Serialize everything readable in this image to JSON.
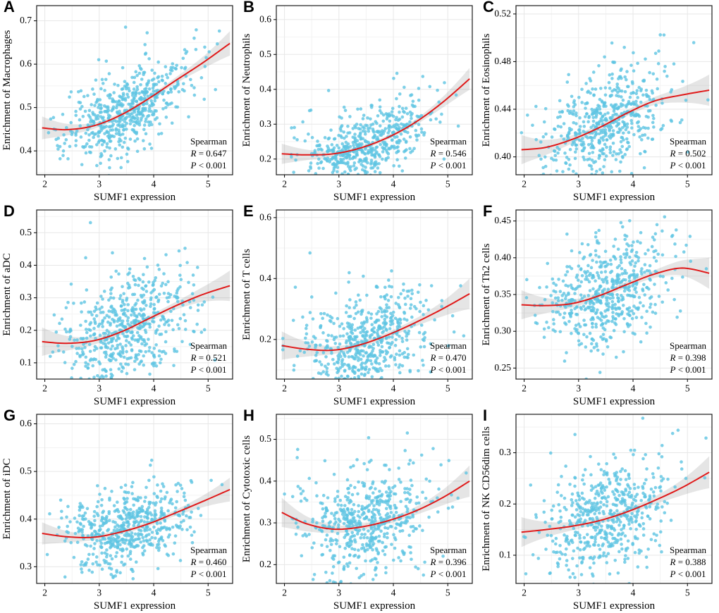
{
  "style": {
    "point_color": "#5ec4e2",
    "line_color": "#e01a1a",
    "band_color": "rgba(125,125,125,0.20)",
    "grid_major": "#e7e7e7",
    "grid_minor": "#f3f3f3",
    "border_color": "#1a1a1a"
  },
  "chart_data": [
    {
      "type": "scatter",
      "panel": "A",
      "ylabel": "Enrichment of Macrophages",
      "xlabel": "SUMF1 expression",
      "stats": {
        "method": "Spearman",
        "r_var": "R",
        "r_val": "= 0.647",
        "p_var": "P",
        "p_val": "< 0.001"
      },
      "x_ticks": [
        2,
        3,
        4,
        5
      ],
      "x_range": [
        1.85,
        5.45
      ],
      "y_ticks": [
        0.4,
        0.5,
        0.6,
        0.7
      ],
      "y_tick_labels": [
        "0.4",
        "0.5",
        "0.6",
        "0.7"
      ],
      "y_range": [
        0.345,
        0.735
      ],
      "n_points": 560,
      "x_mean": 3.5,
      "x_sd": 0.58,
      "spread": 0.045,
      "seed": 11,
      "trend": [
        [
          1.95,
          0.453
        ],
        [
          2.4,
          0.449
        ],
        [
          2.9,
          0.458
        ],
        [
          3.4,
          0.483
        ],
        [
          3.9,
          0.52
        ],
        [
          4.4,
          0.562
        ],
        [
          4.9,
          0.603
        ],
        [
          5.4,
          0.648
        ]
      ]
    },
    {
      "type": "scatter",
      "panel": "B",
      "ylabel": "Enrichment of Neutrophils",
      "xlabel": "SUMF1 expression",
      "stats": {
        "method": "Spearman",
        "r_var": "R",
        "r_val": "= 0.546",
        "p_var": "P",
        "p_val": "< 0.001"
      },
      "x_ticks": [
        2,
        3,
        4,
        5
      ],
      "x_range": [
        1.85,
        5.45
      ],
      "y_ticks": [
        0.2,
        0.3,
        0.4,
        0.5,
        0.6
      ],
      "y_tick_labels": [
        "0.2",
        "0.3",
        "0.4",
        "0.5",
        "0.6"
      ],
      "y_range": [
        0.155,
        0.64
      ],
      "n_points": 560,
      "x_mean": 3.5,
      "x_sd": 0.58,
      "spread": 0.05,
      "seed": 12,
      "trend": [
        [
          1.95,
          0.215
        ],
        [
          2.4,
          0.212
        ],
        [
          2.9,
          0.215
        ],
        [
          3.4,
          0.232
        ],
        [
          3.9,
          0.262
        ],
        [
          4.4,
          0.305
        ],
        [
          4.9,
          0.362
        ],
        [
          5.4,
          0.43
        ]
      ]
    },
    {
      "type": "scatter",
      "panel": "C",
      "ylabel": "Enrichment of Eosinophils",
      "xlabel": "SUMF1 expression",
      "stats": {
        "method": "Spearman",
        "r_var": "R",
        "r_val": "= 0.502",
        "p_var": "P",
        "p_val": "< 0.001"
      },
      "x_ticks": [
        2,
        3,
        4,
        5
      ],
      "x_range": [
        1.85,
        5.45
      ],
      "y_ticks": [
        0.4,
        0.44,
        0.48,
        0.52
      ],
      "y_tick_labels": [
        "0.40",
        "0.44",
        "0.48",
        "0.52"
      ],
      "y_range": [
        0.385,
        0.527
      ],
      "n_points": 560,
      "x_mean": 3.5,
      "x_sd": 0.58,
      "spread": 0.021,
      "seed": 13,
      "trend": [
        [
          1.95,
          0.406
        ],
        [
          2.4,
          0.408
        ],
        [
          2.9,
          0.415
        ],
        [
          3.4,
          0.425
        ],
        [
          3.9,
          0.437
        ],
        [
          4.4,
          0.447
        ],
        [
          4.9,
          0.452
        ],
        [
          5.4,
          0.456
        ]
      ]
    },
    {
      "type": "scatter",
      "panel": "D",
      "ylabel": "Enrichment of aDC",
      "xlabel": "SUMF1 expression",
      "stats": {
        "method": "Spearman",
        "r_var": "R",
        "r_val": "= 0.521",
        "p_var": "P",
        "p_val": "< 0.001"
      },
      "x_ticks": [
        2,
        3,
        4,
        5
      ],
      "x_range": [
        1.85,
        5.45
      ],
      "y_ticks": [
        0.1,
        0.2,
        0.3,
        0.4,
        0.5
      ],
      "y_tick_labels": [
        "0.1",
        "0.2",
        "0.3",
        "0.4",
        "0.5"
      ],
      "y_range": [
        0.05,
        0.57
      ],
      "n_points": 560,
      "x_mean": 3.5,
      "x_sd": 0.58,
      "spread": 0.075,
      "seed": 14,
      "trend": [
        [
          1.95,
          0.165
        ],
        [
          2.4,
          0.16
        ],
        [
          2.9,
          0.168
        ],
        [
          3.4,
          0.195
        ],
        [
          3.9,
          0.235
        ],
        [
          4.4,
          0.275
        ],
        [
          4.9,
          0.31
        ],
        [
          5.4,
          0.337
        ]
      ]
    },
    {
      "type": "scatter",
      "panel": "E",
      "ylabel": "Enrichment of T cells",
      "xlabel": "SUMF1 expression",
      "stats": {
        "method": "Spearman",
        "r_var": "R",
        "r_val": "= 0.470",
        "p_var": "P",
        "p_val": "< 0.001"
      },
      "x_ticks": [
        2,
        3,
        4,
        5
      ],
      "x_range": [
        1.85,
        5.45
      ],
      "y_ticks": [
        0.2,
        0.4,
        0.6
      ],
      "y_tick_labels": [
        "0.2",
        "0.4",
        "0.6"
      ],
      "y_range": [
        0.07,
        0.625
      ],
      "n_points": 560,
      "x_mean": 3.5,
      "x_sd": 0.58,
      "spread": 0.08,
      "seed": 15,
      "trend": [
        [
          1.95,
          0.18
        ],
        [
          2.4,
          0.168
        ],
        [
          2.9,
          0.165
        ],
        [
          3.4,
          0.183
        ],
        [
          3.9,
          0.215
        ],
        [
          4.4,
          0.255
        ],
        [
          4.9,
          0.3
        ],
        [
          5.4,
          0.35
        ]
      ]
    },
    {
      "type": "scatter",
      "panel": "F",
      "ylabel": "Enrichment of Th2 cells",
      "xlabel": "SUMF1 expression",
      "stats": {
        "method": "Spearman",
        "r_var": "R",
        "r_val": "= 0.398",
        "p_var": "P",
        "p_val": "< 0.001"
      },
      "x_ticks": [
        2,
        3,
        4,
        5
      ],
      "x_range": [
        1.85,
        5.45
      ],
      "y_ticks": [
        0.25,
        0.3,
        0.35,
        0.4,
        0.45
      ],
      "y_tick_labels": [
        "0.25",
        "0.30",
        "0.35",
        "0.40",
        "0.45"
      ],
      "y_range": [
        0.235,
        0.465
      ],
      "n_points": 560,
      "x_mean": 3.5,
      "x_sd": 0.58,
      "spread": 0.034,
      "seed": 16,
      "trend": [
        [
          1.95,
          0.336
        ],
        [
          2.4,
          0.335
        ],
        [
          2.9,
          0.338
        ],
        [
          3.4,
          0.349
        ],
        [
          3.9,
          0.364
        ],
        [
          4.4,
          0.378
        ],
        [
          4.9,
          0.386
        ],
        [
          5.4,
          0.379
        ]
      ]
    },
    {
      "type": "scatter",
      "panel": "G",
      "ylabel": "Enrichment of iDC",
      "xlabel": "SUMF1 expression",
      "stats": {
        "method": "Spearman",
        "r_var": "R",
        "r_val": "= 0.460",
        "p_var": "P",
        "p_val": "< 0.001"
      },
      "x_ticks": [
        2,
        3,
        4,
        5
      ],
      "x_range": [
        1.85,
        5.45
      ],
      "y_ticks": [
        0.3,
        0.4,
        0.5,
        0.6
      ],
      "y_tick_labels": [
        "0.3",
        "0.4",
        "0.5",
        "0.6"
      ],
      "y_range": [
        0.265,
        0.62
      ],
      "n_points": 560,
      "x_mean": 3.5,
      "x_sd": 0.58,
      "spread": 0.04,
      "seed": 17,
      "trend": [
        [
          1.95,
          0.37
        ],
        [
          2.4,
          0.363
        ],
        [
          2.9,
          0.362
        ],
        [
          3.4,
          0.373
        ],
        [
          3.9,
          0.39
        ],
        [
          4.4,
          0.413
        ],
        [
          4.9,
          0.437
        ],
        [
          5.4,
          0.462
        ]
      ]
    },
    {
      "type": "scatter",
      "panel": "H",
      "ylabel": "Enrichment of Cytotoxic cells",
      "xlabel": "SUMF1 expression",
      "stats": {
        "method": "Spearman",
        "r_var": "R",
        "r_val": "= 0.396",
        "p_var": "P",
        "p_val": "< 0.001"
      },
      "x_ticks": [
        2,
        3,
        4,
        5
      ],
      "x_range": [
        1.85,
        5.45
      ],
      "y_ticks": [
        0.2,
        0.3,
        0.4,
        0.5
      ],
      "y_tick_labels": [
        "0.2",
        "0.3",
        "0.4",
        "0.5"
      ],
      "y_range": [
        0.155,
        0.56
      ],
      "n_points": 560,
      "x_mean": 3.5,
      "x_sd": 0.58,
      "spread": 0.06,
      "seed": 18,
      "trend": [
        [
          1.95,
          0.325
        ],
        [
          2.4,
          0.298
        ],
        [
          2.9,
          0.285
        ],
        [
          3.4,
          0.29
        ],
        [
          3.9,
          0.305
        ],
        [
          4.4,
          0.328
        ],
        [
          4.9,
          0.36
        ],
        [
          5.4,
          0.4
        ]
      ]
    },
    {
      "type": "scatter",
      "panel": "I",
      "ylabel": "Enrichment of NK CD56dim cells",
      "xlabel": "SUMF1 expression",
      "stats": {
        "method": "Spearman",
        "r_var": "R",
        "r_val": "= 0.388",
        "p_var": "P",
        "p_val": "< 0.001"
      },
      "x_ticks": [
        2,
        3,
        4,
        5
      ],
      "x_range": [
        1.85,
        5.45
      ],
      "y_ticks": [
        0.1,
        0.2,
        0.3
      ],
      "y_tick_labels": [
        "0.1",
        "0.2",
        "0.3"
      ],
      "y_range": [
        0.045,
        0.375
      ],
      "n_points": 560,
      "x_mean": 3.5,
      "x_sd": 0.58,
      "spread": 0.05,
      "seed": 19,
      "trend": [
        [
          1.95,
          0.145
        ],
        [
          2.4,
          0.15
        ],
        [
          2.9,
          0.157
        ],
        [
          3.4,
          0.168
        ],
        [
          3.9,
          0.185
        ],
        [
          4.4,
          0.207
        ],
        [
          4.9,
          0.232
        ],
        [
          5.4,
          0.262
        ]
      ]
    }
  ]
}
